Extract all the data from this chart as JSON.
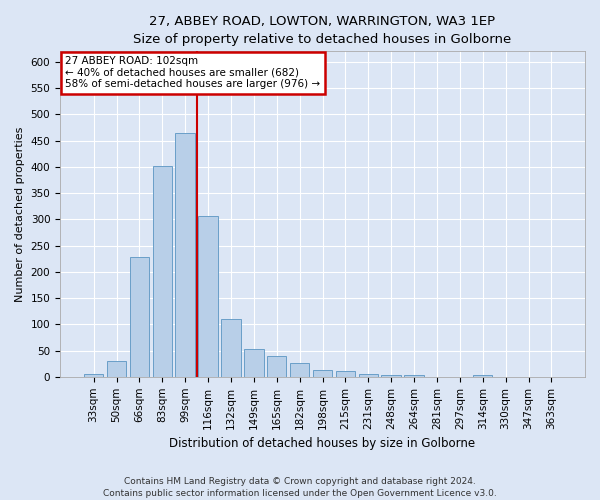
{
  "title1": "27, ABBEY ROAD, LOWTON, WARRINGTON, WA3 1EP",
  "title2": "Size of property relative to detached houses in Golborne",
  "xlabel": "Distribution of detached houses by size in Golborne",
  "ylabel": "Number of detached properties",
  "categories": [
    "33sqm",
    "50sqm",
    "66sqm",
    "83sqm",
    "99sqm",
    "116sqm",
    "132sqm",
    "149sqm",
    "165sqm",
    "182sqm",
    "198sqm",
    "215sqm",
    "231sqm",
    "248sqm",
    "264sqm",
    "281sqm",
    "297sqm",
    "314sqm",
    "330sqm",
    "347sqm",
    "363sqm"
  ],
  "values": [
    5,
    30,
    228,
    402,
    465,
    307,
    110,
    53,
    39,
    26,
    13,
    11,
    5,
    3,
    3,
    0,
    0,
    3,
    0,
    0,
    0
  ],
  "bar_color": "#b8cfe8",
  "bar_edge_color": "#6a9fc8",
  "vline_color": "#cc0000",
  "vline_x_index": 4,
  "annotation_line1": "27 ABBEY ROAD: 102sqm",
  "annotation_line2": "← 40% of detached houses are smaller (682)",
  "annotation_line3": "58% of semi-detached houses are larger (976) →",
  "annotation_box_facecolor": "#ffffff",
  "annotation_box_edgecolor": "#cc0000",
  "background_color": "#dce6f5",
  "plot_bg_color": "#dce6f5",
  "grid_color": "#ffffff",
  "footer1": "Contains HM Land Registry data © Crown copyright and database right 2024.",
  "footer2": "Contains public sector information licensed under the Open Government Licence v3.0.",
  "ylim": [
    0,
    620
  ],
  "yticks": [
    0,
    50,
    100,
    150,
    200,
    250,
    300,
    350,
    400,
    450,
    500,
    550,
    600
  ],
  "title1_fontsize": 9.5,
  "title2_fontsize": 9.0,
  "xlabel_fontsize": 8.5,
  "ylabel_fontsize": 8.0,
  "tick_fontsize": 7.5,
  "annotation_fontsize": 7.5,
  "footer_fontsize": 6.5
}
